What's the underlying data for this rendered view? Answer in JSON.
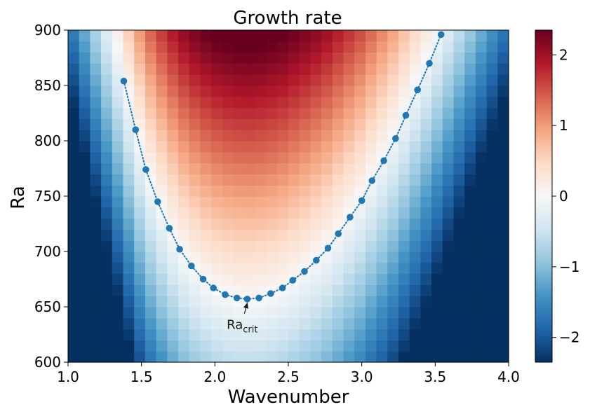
{
  "chart_data": {
    "type": "heatmap",
    "title": "Growth rate",
    "xlabel": "Wavenumber",
    "ylabel": "Ra",
    "xlim": [
      1.0,
      4.0
    ],
    "ylim": [
      600,
      900
    ],
    "x_ticks": [
      "1.0",
      "1.5",
      "2.0",
      "2.5",
      "3.0",
      "3.5",
      "4.0"
    ],
    "y_ticks": [
      "600",
      "650",
      "700",
      "750",
      "800",
      "850",
      "900"
    ],
    "colormap": "RdBu_r",
    "colorbar": {
      "range": [
        -2.35,
        2.35
      ],
      "ticks": [
        "−2",
        "−1",
        "0",
        "1",
        "2"
      ],
      "tick_values": [
        -2,
        -1,
        0,
        1,
        2
      ]
    },
    "grid": {
      "nx": 40,
      "ny": 30,
      "note_values": "growth rate shown by cell color"
    },
    "series": [
      {
        "type": "dotted-line-with-markers",
        "color": "#1f77b4",
        "x": [
          1.38,
          1.46,
          1.53,
          1.61,
          1.69,
          1.76,
          1.84,
          1.92,
          1.99,
          2.07,
          2.15,
          2.22,
          2.3,
          2.38,
          2.46,
          2.53,
          2.61,
          2.69,
          2.77,
          2.84,
          2.92,
          3.0,
          3.07,
          3.15,
          3.23,
          3.3,
          3.38,
          3.46,
          3.54
        ],
        "y": [
          854,
          810,
          774,
          745,
          721,
          702,
          687,
          675,
          667,
          661,
          658,
          657,
          658,
          662,
          667,
          674,
          682,
          692,
          703,
          716,
          731,
          746,
          764,
          782,
          802,
          823,
          846,
          870,
          896
        ]
      }
    ],
    "annotation": {
      "text_main": "Ra",
      "text_sub": "crit",
      "target": [
        2.22,
        657
      ],
      "text_pos": [
        2.08,
        630
      ]
    }
  }
}
